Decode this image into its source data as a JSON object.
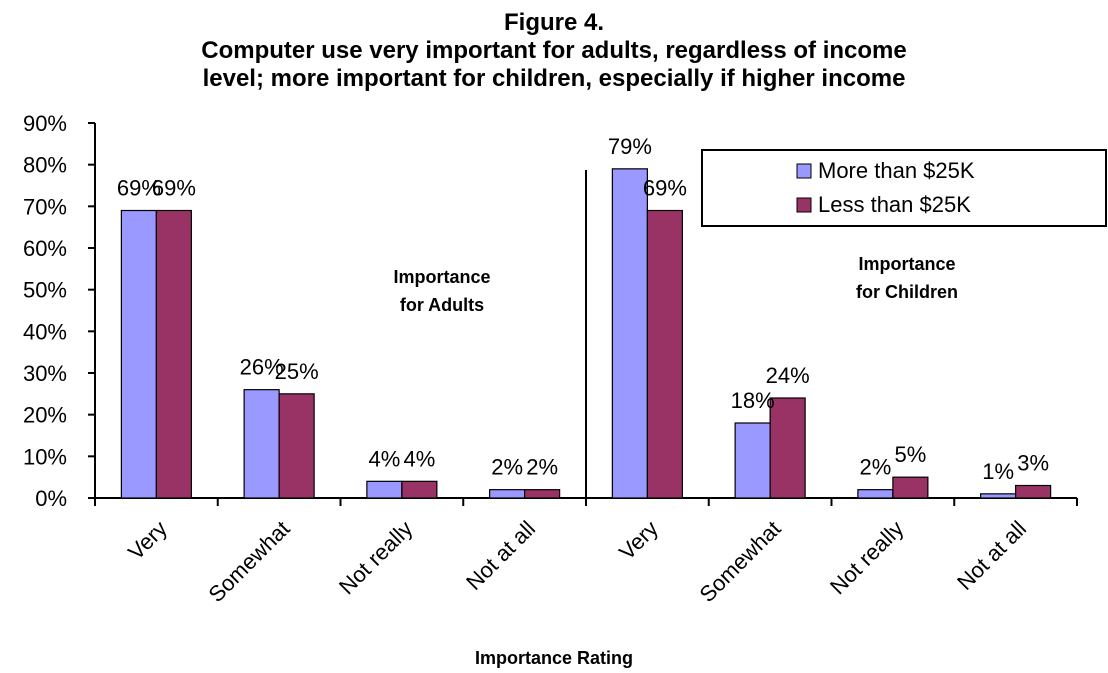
{
  "chart_data": {
    "type": "bar",
    "title_lines": [
      "Figure 4.",
      "Computer use very important for adults, regardless of income",
      "level; more important for children, especially if higher income"
    ],
    "xlabel": "Importance Rating",
    "ylabel": "",
    "ylim": [
      0,
      90
    ],
    "y_ticks": [
      "0%",
      "10%",
      "20%",
      "30%",
      "40%",
      "50%",
      "60%",
      "70%",
      "80%",
      "90%"
    ],
    "categories": [
      "Very",
      "Somewhat",
      "Not really",
      "Not at all",
      "Very",
      "Somewhat",
      "Not really",
      "Not at all"
    ],
    "series": [
      {
        "name": "More than $25K",
        "color": "#9999ff",
        "values": [
          69,
          26,
          4,
          2,
          79,
          18,
          2,
          1
        ],
        "labels": [
          "69%",
          "26%",
          "4%",
          "2%",
          "79%",
          "18%",
          "2%",
          "1%"
        ]
      },
      {
        "name": "Less than $25K",
        "color": "#993366",
        "values": [
          69,
          25,
          4,
          2,
          69,
          24,
          5,
          3
        ],
        "labels": [
          "69%",
          "25%",
          "4%",
          "2%",
          "69%",
          "24%",
          "5%",
          "3%"
        ]
      }
    ],
    "annotations": [
      {
        "lines": [
          "Importance",
          "for Adults"
        ]
      },
      {
        "lines": [
          "Importance",
          "for Children"
        ]
      }
    ],
    "legend": "top-right",
    "grid": false
  }
}
